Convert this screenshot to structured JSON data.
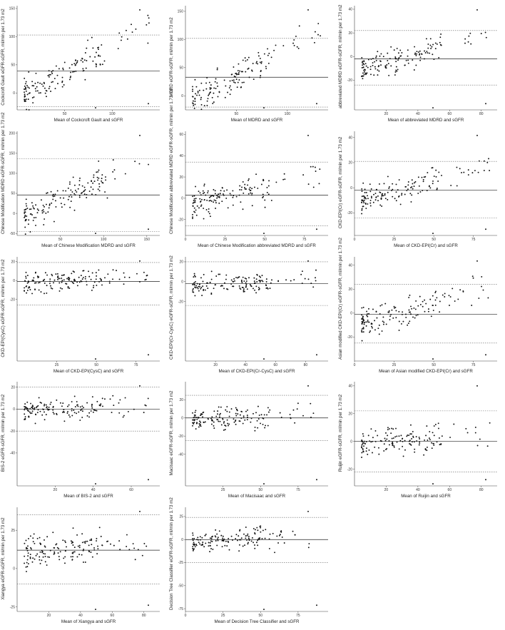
{
  "chart_data": [
    {
      "type": "scatter",
      "xlabel": "Mean of Cockcroft Gault and sGFR",
      "ylabel": "Cockcroft Gault eGFR-sGFR, ml/min per 1.73 m2",
      "xlim": [
        0,
        150
      ],
      "ylim": [
        -30,
        155
      ],
      "xticks": [
        50,
        100
      ],
      "yticks": [
        0,
        50,
        100,
        150
      ],
      "mean_line": 39,
      "loa": [
        -24,
        103
      ],
      "points": "cg"
    },
    {
      "type": "scatter",
      "xlabel": "Mean of MDRD and sGFR",
      "ylabel": "MDRD eGFR-sGFR, ml/min per 1.73 m2",
      "xlim": [
        0,
        140
      ],
      "ylim": [
        -25,
        160
      ],
      "xticks": [
        50,
        100
      ],
      "yticks": [
        0,
        50,
        100,
        150
      ],
      "mean_line": 33,
      "loa": [
        -20,
        102
      ],
      "points": "mdrd"
    },
    {
      "type": "scatter",
      "xlabel": "Mean of abbreviated MDRD and sGFR",
      "ylabel": "abbreviated MDRD eGFR-sGFR, ml/min per 1.73 m2",
      "xlim": [
        0,
        90
      ],
      "ylim": [
        -45,
        43
      ],
      "xticks": [
        20,
        40,
        60,
        80
      ],
      "yticks": [
        -20,
        0,
        20,
        40
      ],
      "mean_line": -2,
      "loa": [
        -24,
        22
      ],
      "points": "amdrd"
    },
    {
      "type": "scatter",
      "xlabel": "Mean of Chinese Modification MDRD and sGFR",
      "ylabel": "Chinese Modification MDRD eGFR-sGFR, ml/min per 1.73 m2",
      "xlim": [
        0,
        165
      ],
      "ylim": [
        -55,
        205
      ],
      "xticks": [
        50,
        100,
        150
      ],
      "yticks": [
        -50,
        0,
        50,
        100,
        150,
        200
      ],
      "mean_line": 46,
      "loa": [
        -45,
        136
      ],
      "points": "cmdrd"
    },
    {
      "type": "scatter",
      "xlabel": "Mean of Chinese Modification abbreviated MDRD and sGFR",
      "ylabel": "Chinese Modification abbreviated MDRD eGFR-sGFR, ml/min per 1.73 m2",
      "xlim": [
        0,
        90
      ],
      "ylim": [
        -35,
        63
      ],
      "xticks": [
        0,
        25,
        50,
        75
      ],
      "yticks": [
        -20,
        0,
        20,
        40,
        60
      ],
      "mean_line": 3,
      "loa": [
        -26,
        34
      ],
      "points": "camdrd"
    },
    {
      "type": "scatter",
      "xlabel": "Mean of CKD-EPI(Cr) and sGFR",
      "ylabel": "CKD-EPI(Cr) eGFR-sGFR, ml/min per 1.73 m2",
      "xlim": [
        0,
        90
      ],
      "ylim": [
        -38,
        45
      ],
      "xticks": [
        0,
        25,
        50,
        75
      ],
      "yticks": [
        -20,
        0,
        20,
        40
      ],
      "mean_line": -2,
      "loa": [
        -24,
        21
      ],
      "points": "epicr"
    },
    {
      "type": "scatter",
      "xlabel": "Mean of CKD-EPI(CysC) and sGFR",
      "ylabel": "CKD-EPI(CysC) eGFR-sGFR, ml/min per 1.73 m2",
      "xlim": [
        0,
        90
      ],
      "ylim": [
        -85,
        25
      ],
      "xticks": [
        25,
        50,
        75
      ],
      "yticks": [
        -20,
        0,
        20
      ],
      "mean_line": -1,
      "loa": [
        -26,
        19
      ],
      "points": "epicys"
    },
    {
      "type": "scatter",
      "xlabel": "Mean of CKD-EPI(Cr-CysC) and sGFR",
      "ylabel": "CKD-EPI(Cr-CysC) eGFR-sGFR, ml/min per 1.73 m2",
      "xlim": [
        0,
        95
      ],
      "ylim": [
        -80,
        25
      ],
      "xticks": [
        20,
        40,
        60,
        80
      ],
      "yticks": [
        -20,
        0,
        20
      ],
      "mean_line": -2,
      "loa": [
        -24,
        20
      ],
      "points": "epicrcys"
    },
    {
      "type": "scatter",
      "xlabel": "Mean of Asian modified CKD-EPI(Cr) and sGFR",
      "ylabel": "Asian modified CKD-EPI(Cr) eGFR-sGFR, ml/min per 1.73 m2",
      "xlim": [
        0,
        90
      ],
      "ylim": [
        -40,
        47
      ],
      "xticks": [
        0,
        25,
        50,
        75
      ],
      "yticks": [
        -20,
        0,
        20,
        40
      ],
      "mean_line": -1,
      "loa": [
        -25,
        24
      ],
      "points": "asian"
    },
    {
      "type": "scatter",
      "xlabel": "Mean of BIS-2 and sGFR",
      "ylabel": "BIS-2 eGFR-sGFR, ml/min per 1.73 m2",
      "xlim": [
        0,
        75
      ],
      "ylim": [
        -70,
        25
      ],
      "xticks": [
        20,
        40,
        60
      ],
      "yticks": [
        -40,
        -20,
        0,
        20
      ],
      "mean_line": 0,
      "loa": [
        -20,
        20
      ],
      "points": "bis2"
    },
    {
      "type": "scatter",
      "xlabel": "Mean of Macisaac and sGFR",
      "ylabel": "Macisaac eGFR-sGFR, ml/min per 1.73 m2",
      "xlim": [
        0,
        95
      ],
      "ylim": [
        -75,
        40
      ],
      "xticks": [
        25,
        50,
        75
      ],
      "yticks": [
        -40,
        -20,
        0,
        20
      ],
      "mean_line": 0,
      "loa": [
        -25,
        25
      ],
      "points": "maci"
    },
    {
      "type": "scatter",
      "xlabel": "Mean of Ruijin and sGFR",
      "ylabel": "Ruijin eGFR-sGFR, ml/min per 1.73 m2",
      "xlim": [
        0,
        90
      ],
      "ylim": [
        -32,
        43
      ],
      "xticks": [
        20,
        40,
        60,
        80
      ],
      "yticks": [
        -20,
        0,
        20,
        40
      ],
      "mean_line": 0,
      "loa": [
        -22,
        22
      ],
      "points": "ruijin"
    },
    {
      "type": "scatter",
      "xlabel": "Mean of Xiangya and sGFR",
      "ylabel": "Xiangya eGFR-sGFR, ml/min per 1.73 m2",
      "xlim": [
        0,
        90
      ],
      "ylim": [
        -28,
        40
      ],
      "xticks": [
        20,
        40,
        60,
        80
      ],
      "yticks": [
        -25,
        0,
        25
      ],
      "mean_line": 12,
      "loa": [
        -10,
        35
      ],
      "points": "xiangya"
    },
    {
      "type": "scatter",
      "xlabel": "Mean of Decision Tree Classifier and sGFR",
      "ylabel": "Decision Tree Classifier eGFR-sGFR, ml/min per 1.73 m2",
      "xlim": [
        0,
        95
      ],
      "ylim": [
        -78,
        35
      ],
      "xticks": [
        0,
        25,
        50,
        75
      ],
      "yticks": [
        -75,
        -50,
        -25,
        0,
        25
      ],
      "mean_line": 0,
      "loa": [
        -25,
        24
      ],
      "points": "dtc"
    }
  ]
}
